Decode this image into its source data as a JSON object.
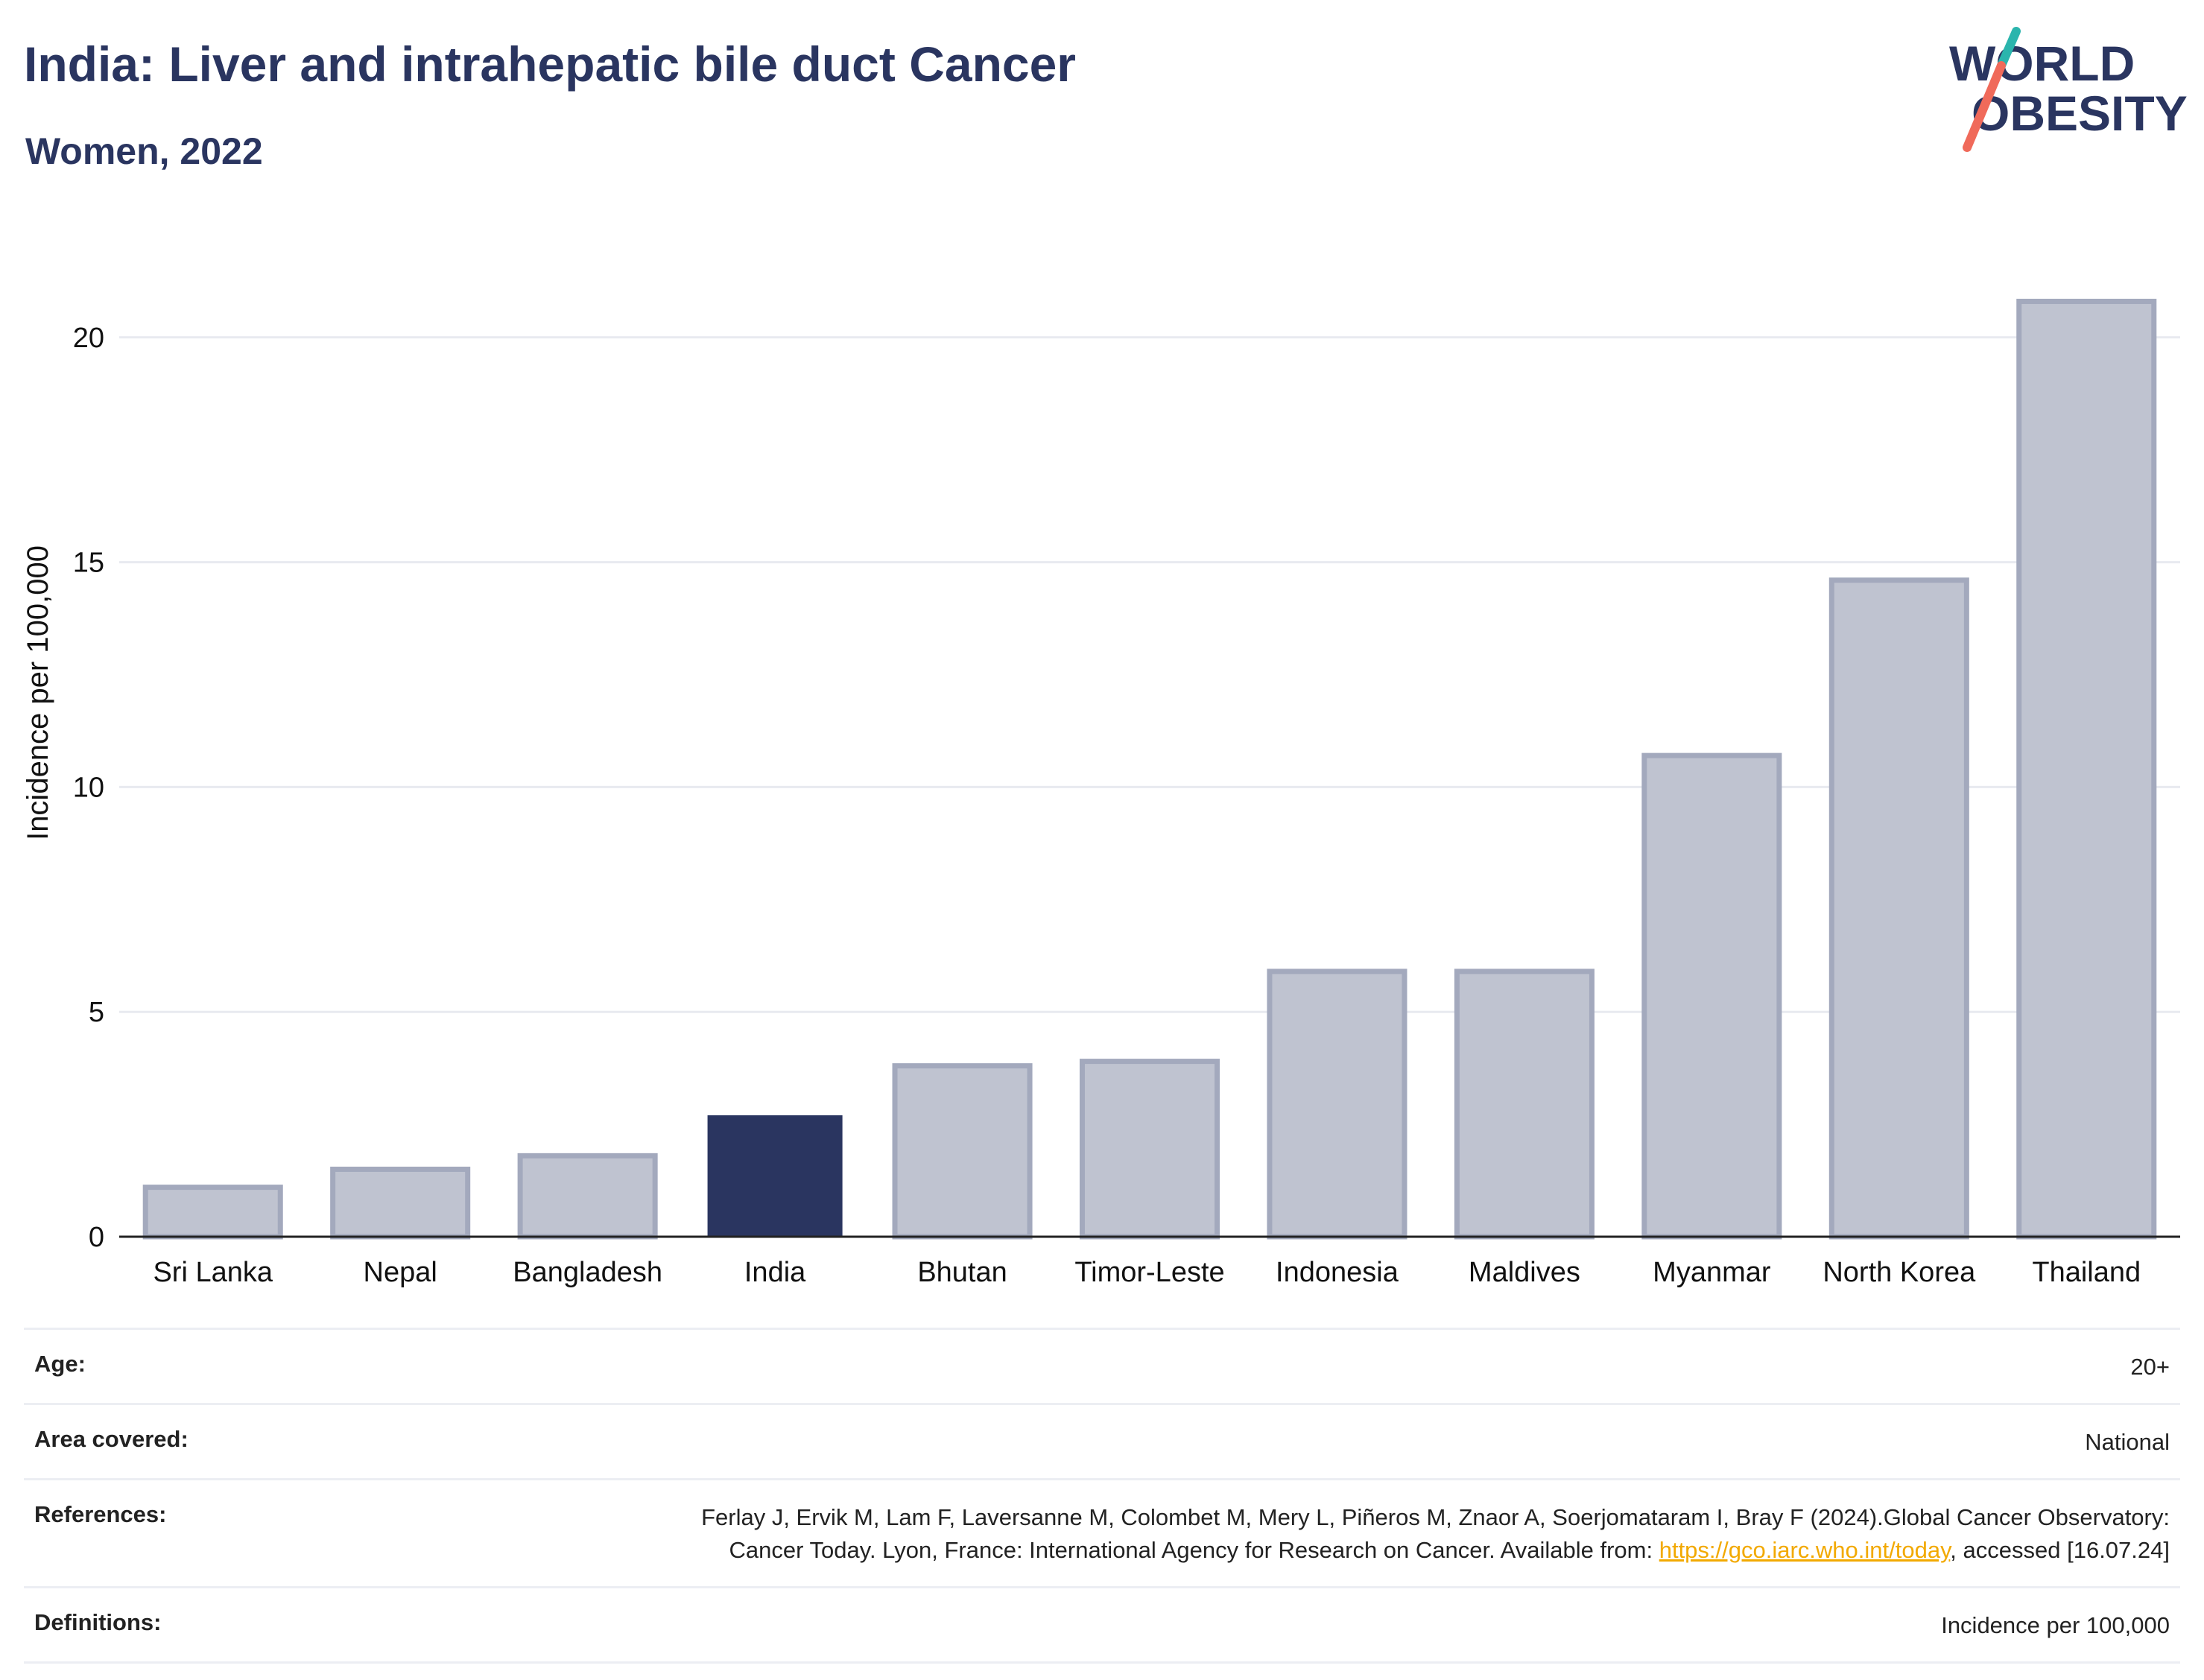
{
  "header": {
    "title": "India: Liver and intrahepatic bile duct Cancer",
    "subtitle": "Women, 2022"
  },
  "logo": {
    "line1": "WORLD",
    "line2": "OBESITY",
    "accent_teal": "#2bb5ad",
    "accent_coral": "#f06a5a",
    "text_color": "#2a3560"
  },
  "chart_data": {
    "type": "bar",
    "categories": [
      "Sri Lanka",
      "Nepal",
      "Bangladesh",
      "India",
      "Bhutan",
      "Timor-Leste",
      "Indonesia",
      "Maldives",
      "Myanmar",
      "North Korea",
      "Thailand"
    ],
    "values": [
      1.1,
      1.5,
      1.8,
      2.7,
      3.8,
      3.9,
      5.9,
      5.9,
      10.7,
      14.6,
      20.8
    ],
    "highlight": "India",
    "ylabel": "Incidence per 100,000",
    "xlabel": "",
    "ylim": [
      0,
      22.2
    ],
    "yticks": [
      0,
      5,
      10,
      15,
      20
    ],
    "grid": true,
    "colors": {
      "bar": "#bfc3d0",
      "bar_edge": "#a3a9bd",
      "highlight": "#2a3560",
      "grid": "#e8eaf0"
    }
  },
  "meta": {
    "age_label": "Age:",
    "age_value": "20+",
    "area_label": "Area covered:",
    "area_value": "National",
    "references_label": "References:",
    "references_text_before": "Ferlay J, Ervik M, Lam F, Laversanne M, Colombet M, Mery L, Piñeros M, Znaor A, Soerjomataram I, Bray F (2024).Global Cancer Observatory: Cancer Today. Lyon, France: International Agency for Research on Cancer. Available from: ",
    "references_link": "https://gco.iarc.who.int/today",
    "references_text_after": ", accessed [16.07.24]",
    "definitions_label": "Definitions:",
    "definitions_value": "Incidence per 100,000"
  }
}
